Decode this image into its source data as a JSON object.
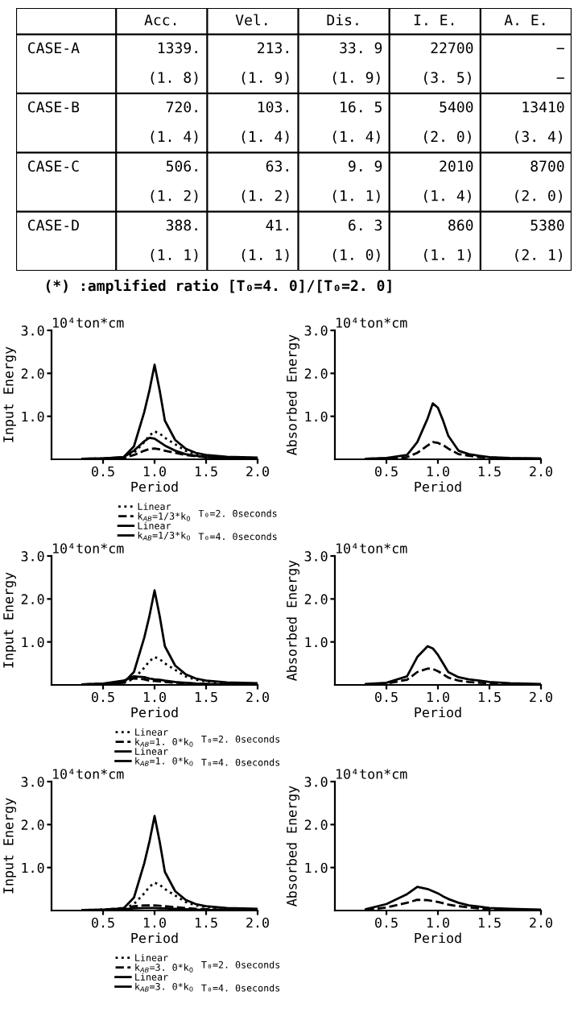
{
  "chart_data": [
    {
      "type": "other",
      "categories": [
        "Acc.",
        "Vel.",
        "Dis.",
        "I. E.",
        "A. E."
      ],
      "y_categories": [
        "CASE-A",
        "CASE-B",
        "CASE-C",
        "CASE-D"
      ],
      "cell_labels": [
        [
          "1339.\n(1. 8)",
          "213.\n(1. 9)",
          "33. 9\n(1. 9)",
          "22700\n(3. 5)",
          "−\n−"
        ],
        [
          "720.\n(1. 4)",
          "103.\n(1. 4)",
          "16. 5\n(1. 4)",
          "5400\n(2. 0)",
          "13410\n(3. 4)"
        ],
        [
          "506.\n(1. 2)",
          "63.\n(1. 2)",
          "9. 9\n(1. 1)",
          "2010\n(1. 4)",
          "8700\n(2. 0)"
        ],
        [
          "388.\n(1. 1)",
          "41.\n(1. 1)",
          "6. 3\n(1. 0)",
          "860\n(1. 1)",
          "5380\n(2. 1)"
        ]
      ],
      "annotations": [
        "(*) :amplified ratio [T₀=4. 0]/[T₀=2. 0]"
      ]
    },
    {
      "type": "line",
      "title": "10⁴ton*cm",
      "xlabel": "Period",
      "ylabel": "Input Energy",
      "xlim": [
        0,
        2.0
      ],
      "ylim": [
        0,
        3.0
      ],
      "xticks": [
        {
          "value": 0.5,
          "label": "0.5"
        },
        {
          "value": 1,
          "label": "1.0"
        },
        {
          "value": 1.5,
          "label": "1.5"
        },
        {
          "value": 2,
          "label": "2.0"
        }
      ],
      "yticks": [
        {
          "value": 1,
          "label": "1.0"
        },
        {
          "value": 2,
          "label": "2.0"
        },
        {
          "value": 3,
          "label": "3.0"
        }
      ],
      "grid": false,
      "legend": "bottom",
      "x": [
        0.3,
        0.5,
        0.7,
        0.8,
        0.9,
        0.95,
        1.0,
        1.05,
        1.1,
        1.2,
        1.3,
        1.4,
        1.5,
        1.7,
        2.0
      ],
      "annotations": [
        "T₀=2. 0seconds",
        "T₀=4. 0seconds"
      ],
      "series": [
        {
          "name": "Linear",
          "color": "#000000",
          "line_style": "dotted",
          "values": [
            0.01,
            0.02,
            0.04,
            0.15,
            0.4,
            0.55,
            0.65,
            0.6,
            0.5,
            0.35,
            0.2,
            0.12,
            0.08,
            0.05,
            0.03
          ]
        },
        {
          "name": "k$_{AB}$=1/3*k$_{0}$",
          "color": "#000000",
          "line_style": "dashed",
          "values": [
            0.01,
            0.01,
            0.03,
            0.1,
            0.2,
            0.24,
            0.25,
            0.23,
            0.2,
            0.15,
            0.1,
            0.07,
            0.05,
            0.03,
            0.02
          ]
        },
        {
          "name": "Linear",
          "color": "#000000",
          "line_style": "solid",
          "values": [
            0.01,
            0.02,
            0.05,
            0.3,
            1.1,
            1.6,
            2.2,
            1.6,
            0.9,
            0.45,
            0.25,
            0.15,
            0.1,
            0.06,
            0.04
          ]
        },
        {
          "name": "k$_{AB}$=1/3*k$_{0}$",
          "color": "#000000",
          "line_style": "solid",
          "values": [
            0.01,
            0.02,
            0.05,
            0.2,
            0.42,
            0.5,
            0.48,
            0.4,
            0.32,
            0.2,
            0.12,
            0.08,
            0.05,
            0.03,
            0.02
          ]
        }
      ]
    },
    {
      "type": "line",
      "title": "10⁴ton*cm",
      "xlabel": "Period",
      "ylabel": "Absorbed Energy",
      "xlim": [
        0,
        2.0
      ],
      "ylim": [
        0,
        3.0
      ],
      "xticks": [
        {
          "value": 0.5,
          "label": "0.5"
        },
        {
          "value": 1,
          "label": "1.0"
        },
        {
          "value": 1.5,
          "label": "1.5"
        },
        {
          "value": 2,
          "label": "2.0"
        }
      ],
      "yticks": [
        {
          "value": 1,
          "label": "1.0"
        },
        {
          "value": 2,
          "label": "2.0"
        },
        {
          "value": 3,
          "label": "3.0"
        }
      ],
      "grid": false,
      "x": [
        0.3,
        0.5,
        0.7,
        0.8,
        0.9,
        0.95,
        1.0,
        1.05,
        1.1,
        1.2,
        1.3,
        1.4,
        1.5,
        1.7,
        2.0
      ],
      "series": [
        {
          "color": "#000000",
          "line_style": "dashed",
          "values": [
            0.01,
            0.02,
            0.05,
            0.15,
            0.32,
            0.4,
            0.38,
            0.33,
            0.25,
            0.12,
            0.08,
            0.05,
            0.04,
            0.02,
            0.01
          ]
        },
        {
          "color": "#000000",
          "line_style": "solid",
          "values": [
            0.01,
            0.03,
            0.1,
            0.4,
            0.95,
            1.3,
            1.2,
            0.9,
            0.55,
            0.2,
            0.12,
            0.08,
            0.05,
            0.03,
            0.02
          ]
        }
      ]
    },
    {
      "type": "line",
      "title": "10⁴ton*cm",
      "xlabel": "Period",
      "ylabel": "Input Energy",
      "xlim": [
        0,
        2.0
      ],
      "ylim": [
        0,
        3.0
      ],
      "xticks": [
        {
          "value": 0.5,
          "label": "0.5"
        },
        {
          "value": 1,
          "label": "1.0"
        },
        {
          "value": 1.5,
          "label": "1.5"
        },
        {
          "value": 2,
          "label": "2.0"
        }
      ],
      "yticks": [
        {
          "value": 1,
          "label": "1.0"
        },
        {
          "value": 2,
          "label": "2.0"
        },
        {
          "value": 3,
          "label": "3.0"
        }
      ],
      "grid": false,
      "legend": "bottom",
      "x": [
        0.3,
        0.5,
        0.7,
        0.8,
        0.9,
        0.95,
        1.0,
        1.05,
        1.1,
        1.2,
        1.3,
        1.4,
        1.5,
        1.7,
        2.0
      ],
      "annotations": [
        "T₀=2. 0seconds",
        "T₀=4. 0seconds"
      ],
      "series": [
        {
          "name": "Linear",
          "color": "#000000",
          "line_style": "dotted",
          "values": [
            0.01,
            0.02,
            0.04,
            0.15,
            0.4,
            0.55,
            0.65,
            0.6,
            0.5,
            0.35,
            0.2,
            0.12,
            0.08,
            0.05,
            0.03
          ]
        },
        {
          "name": "k$_{AB}$=1. 0*k$_{0}$",
          "color": "#000000",
          "line_style": "dashed",
          "values": [
            0.01,
            0.02,
            0.08,
            0.15,
            0.13,
            0.1,
            0.09,
            0.08,
            0.07,
            0.05,
            0.04,
            0.03,
            0.02,
            0.01,
            0.01
          ]
        },
        {
          "name": "Linear",
          "color": "#000000",
          "line_style": "solid",
          "values": [
            0.01,
            0.02,
            0.05,
            0.3,
            1.1,
            1.6,
            2.2,
            1.6,
            0.9,
            0.45,
            0.25,
            0.15,
            0.1,
            0.06,
            0.04
          ]
        },
        {
          "name": "k$_{AB}$=1. 0*k$_{0}$",
          "color": "#000000",
          "line_style": "solid",
          "values": [
            0.01,
            0.03,
            0.1,
            0.2,
            0.18,
            0.15,
            0.13,
            0.12,
            0.1,
            0.07,
            0.05,
            0.03,
            0.02,
            0.01,
            0.01
          ]
        }
      ]
    },
    {
      "type": "line",
      "title": "10⁴ton*cm",
      "xlabel": "Period",
      "ylabel": "Absorbed Energy",
      "xlim": [
        0,
        2.0
      ],
      "ylim": [
        0,
        3.0
      ],
      "xticks": [
        {
          "value": 0.5,
          "label": "0.5"
        },
        {
          "value": 1,
          "label": "1.0"
        },
        {
          "value": 1.5,
          "label": "1.5"
        },
        {
          "value": 2,
          "label": "2.0"
        }
      ],
      "yticks": [
        {
          "value": 1,
          "label": "1.0"
        },
        {
          "value": 2,
          "label": "2.0"
        },
        {
          "value": 3,
          "label": "3.0"
        }
      ],
      "grid": false,
      "x": [
        0.3,
        0.5,
        0.7,
        0.8,
        0.9,
        0.95,
        1.0,
        1.05,
        1.1,
        1.2,
        1.3,
        1.4,
        1.5,
        1.7,
        2.0
      ],
      "series": [
        {
          "color": "#000000",
          "line_style": "dashed",
          "values": [
            0.01,
            0.03,
            0.12,
            0.3,
            0.38,
            0.37,
            0.32,
            0.25,
            0.17,
            0.1,
            0.07,
            0.05,
            0.04,
            0.02,
            0.01
          ]
        },
        {
          "color": "#000000",
          "line_style": "solid",
          "values": [
            0.02,
            0.05,
            0.2,
            0.65,
            0.9,
            0.85,
            0.7,
            0.5,
            0.3,
            0.18,
            0.13,
            0.1,
            0.07,
            0.04,
            0.02
          ]
        }
      ]
    },
    {
      "type": "line",
      "title": "10⁴ton*cm",
      "xlabel": "Period",
      "ylabel": "Input Energy",
      "xlim": [
        0,
        2.0
      ],
      "ylim": [
        0,
        3.0
      ],
      "xticks": [
        {
          "value": 0.5,
          "label": "0.5"
        },
        {
          "value": 1,
          "label": "1.0"
        },
        {
          "value": 1.5,
          "label": "1.5"
        },
        {
          "value": 2,
          "label": "2.0"
        }
      ],
      "yticks": [
        {
          "value": 1,
          "label": "1.0"
        },
        {
          "value": 2,
          "label": "2.0"
        },
        {
          "value": 3,
          "label": "3.0"
        }
      ],
      "grid": false,
      "legend": "bottom",
      "x": [
        0.3,
        0.5,
        0.7,
        0.8,
        0.9,
        0.95,
        1.0,
        1.05,
        1.1,
        1.2,
        1.3,
        1.4,
        1.5,
        1.7,
        2.0
      ],
      "annotations": [
        "T₀=2. 0seconds",
        "T₀=4. 0seconds"
      ],
      "series": [
        {
          "name": "Linear",
          "color": "#000000",
          "line_style": "dotted",
          "values": [
            0.01,
            0.02,
            0.04,
            0.15,
            0.4,
            0.55,
            0.65,
            0.6,
            0.5,
            0.35,
            0.2,
            0.12,
            0.08,
            0.05,
            0.03
          ]
        },
        {
          "name": "k$_{AB}$=3. 0*k$_{0}$",
          "color": "#000000",
          "line_style": "dashed",
          "values": [
            0.0,
            0.02,
            0.06,
            0.1,
            0.12,
            0.12,
            0.12,
            0.11,
            0.1,
            0.08,
            0.06,
            0.04,
            0.03,
            0.02,
            0.01
          ]
        },
        {
          "name": "Linear",
          "color": "#000000",
          "line_style": "solid",
          "values": [
            0.01,
            0.02,
            0.05,
            0.3,
            1.1,
            1.6,
            2.2,
            1.6,
            0.9,
            0.45,
            0.25,
            0.15,
            0.1,
            0.06,
            0.04
          ]
        },
        {
          "name": "k$_{AB}$=3. 0*k$_{0}$",
          "color": "#000000",
          "line_style": "solid",
          "values": [
            0.0,
            0.01,
            0.03,
            0.05,
            0.06,
            0.06,
            0.06,
            0.05,
            0.05,
            0.04,
            0.03,
            0.02,
            0.01,
            0.01,
            0.0
          ]
        }
      ]
    },
    {
      "type": "line",
      "title": "10⁴ton*cm",
      "xlabel": "Period",
      "ylabel": "Absorbed Energy",
      "xlim": [
        0,
        2.0
      ],
      "ylim": [
        0,
        3.0
      ],
      "xticks": [
        {
          "value": 0.5,
          "label": "0.5"
        },
        {
          "value": 1,
          "label": "1.0"
        },
        {
          "value": 1.5,
          "label": "1.5"
        },
        {
          "value": 2,
          "label": "2.0"
        }
      ],
      "yticks": [
        {
          "value": 1,
          "label": "1.0"
        },
        {
          "value": 2,
          "label": "2.0"
        },
        {
          "value": 3,
          "label": "3.0"
        }
      ],
      "grid": false,
      "x": [
        0.3,
        0.5,
        0.7,
        0.8,
        0.9,
        0.95,
        1.0,
        1.05,
        1.1,
        1.2,
        1.3,
        1.4,
        1.5,
        1.7,
        2.0
      ],
      "series": [
        {
          "color": "#000000",
          "line_style": "dashed",
          "values": [
            0.01,
            0.07,
            0.18,
            0.25,
            0.24,
            0.22,
            0.2,
            0.17,
            0.14,
            0.1,
            0.07,
            0.05,
            0.04,
            0.02,
            0.01
          ]
        },
        {
          "color": "#000000",
          "line_style": "solid",
          "values": [
            0.03,
            0.15,
            0.38,
            0.55,
            0.5,
            0.45,
            0.4,
            0.33,
            0.27,
            0.18,
            0.12,
            0.09,
            0.06,
            0.04,
            0.02
          ]
        }
      ]
    }
  ]
}
